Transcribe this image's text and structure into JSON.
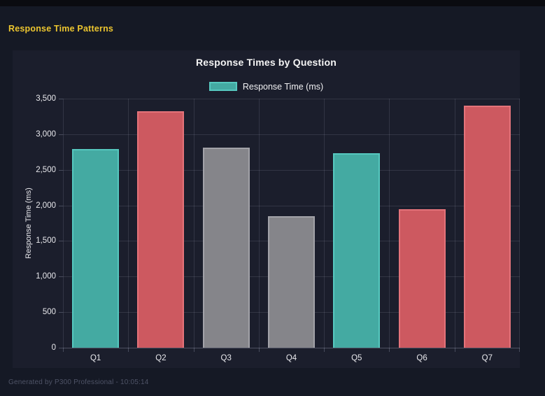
{
  "page": {
    "header_title": "Response Time Patterns",
    "footer": "Generated by P300 Professional - 10:05:14"
  },
  "colors": {
    "page_bg": "#151925",
    "panel_bg": "#1b1e2c",
    "header_yellow": "#ecc52f",
    "title_text": "#f5f5f5",
    "tick_text": "#e8e8ec",
    "footer_text": "#4e5366",
    "bars": {
      "teal": {
        "fill": "#44aaa2",
        "border": "#56c8bf"
      },
      "red": {
        "fill": "#cd5960",
        "border": "#e4737a"
      },
      "gray": {
        "fill": "#85858a",
        "border": "#a2a2a8"
      }
    }
  },
  "chart_data": {
    "type": "bar",
    "title": "Response Times by Question",
    "legend": [
      {
        "label": "Response Time (ms)",
        "color_key": "teal"
      }
    ],
    "legend_position": "top",
    "categories": [
      "Q1",
      "Q2",
      "Q3",
      "Q4",
      "Q5",
      "Q6",
      "Q7"
    ],
    "values": [
      2790,
      3325,
      2810,
      1845,
      2730,
      1950,
      3405
    ],
    "bar_color_keys": [
      "teal",
      "red",
      "gray",
      "gray",
      "teal",
      "red",
      "red"
    ],
    "xlabel": "",
    "ylabel": "Response Time (ms)",
    "ylim": [
      0,
      3500
    ],
    "ytick_values": [
      0,
      500,
      1000,
      1500,
      2000,
      2500,
      3000,
      3500
    ],
    "ytick_labels": [
      "0",
      "500",
      "1,000",
      "1,500",
      "2,000",
      "2,500",
      "3,000",
      "3,500"
    ],
    "grid": true
  }
}
